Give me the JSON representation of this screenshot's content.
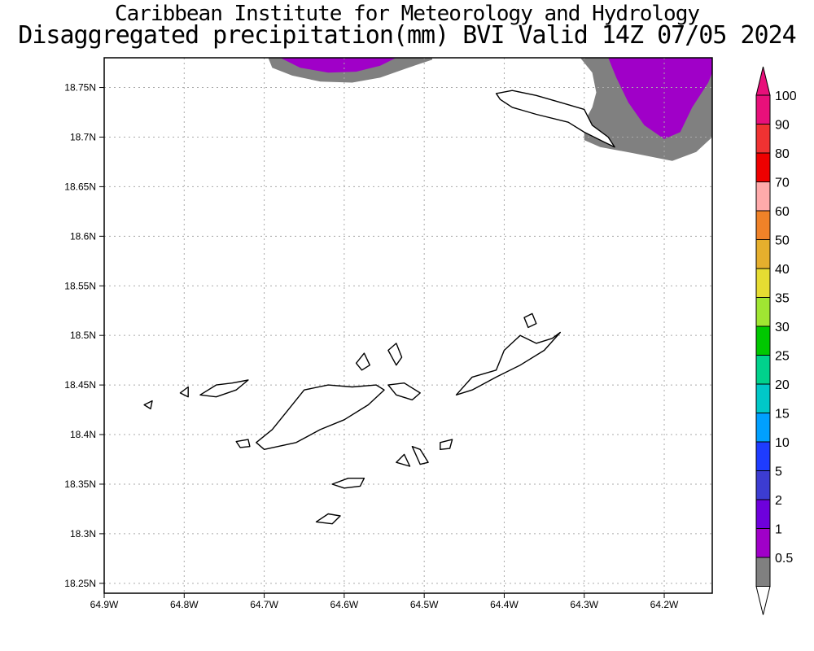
{
  "titles": {
    "line1": "Caribbean Institute for Meteorology and Hydrology",
    "line2": "Disaggregated precipitation(mm) BVI Valid 14Z 07/05 2024"
  },
  "map": {
    "lon_range": [
      -64.9,
      -64.14
    ],
    "lat_range": [
      18.24,
      18.78
    ],
    "lon_ticks": [
      {
        "v": -64.9,
        "label": "64.9W"
      },
      {
        "v": -64.8,
        "label": "64.8W"
      },
      {
        "v": -64.7,
        "label": "64.7W"
      },
      {
        "v": -64.6,
        "label": "64.6W"
      },
      {
        "v": -64.5,
        "label": "64.5W"
      },
      {
        "v": -64.4,
        "label": "64.4W"
      },
      {
        "v": -64.3,
        "label": "64.3W"
      },
      {
        "v": -64.2,
        "label": "64.2W"
      }
    ],
    "lat_ticks": [
      {
        "v": 18.25,
        "label": "18.25N"
      },
      {
        "v": 18.3,
        "label": "18.3N"
      },
      {
        "v": 18.35,
        "label": "18.35N"
      },
      {
        "v": 18.4,
        "label": "18.4N"
      },
      {
        "v": 18.45,
        "label": "18.45N"
      },
      {
        "v": 18.5,
        "label": "18.5N"
      },
      {
        "v": 18.55,
        "label": "18.55N"
      },
      {
        "v": 18.6,
        "label": "18.6N"
      },
      {
        "v": 18.65,
        "label": "18.65N"
      },
      {
        "v": 18.7,
        "label": "18.7N"
      },
      {
        "v": 18.75,
        "label": "18.75N"
      }
    ],
    "grid": true,
    "islands": [
      {
        "name": "Anegada",
        "poly": [
          [
            -64.41,
            18.744
          ],
          [
            -64.39,
            18.747
          ],
          [
            -64.36,
            18.742
          ],
          [
            -64.33,
            18.735
          ],
          [
            -64.3,
            18.728
          ],
          [
            -64.29,
            18.712
          ],
          [
            -64.27,
            18.7
          ],
          [
            -64.262,
            18.69
          ],
          [
            -64.275,
            18.695
          ],
          [
            -64.3,
            18.705
          ],
          [
            -64.32,
            18.715
          ],
          [
            -64.36,
            18.723
          ],
          [
            -64.39,
            18.73
          ],
          [
            -64.405,
            18.738
          ]
        ]
      },
      {
        "name": "Tortola",
        "poly": [
          [
            -64.7,
            18.385
          ],
          [
            -64.66,
            18.392
          ],
          [
            -64.63,
            18.405
          ],
          [
            -64.6,
            18.415
          ],
          [
            -64.57,
            18.43
          ],
          [
            -64.55,
            18.445
          ],
          [
            -64.56,
            18.45
          ],
          [
            -64.59,
            18.448
          ],
          [
            -64.62,
            18.45
          ],
          [
            -64.65,
            18.445
          ],
          [
            -64.67,
            18.425
          ],
          [
            -64.69,
            18.405
          ],
          [
            -64.71,
            18.392
          ]
        ]
      },
      {
        "name": "Virgin Gorda",
        "poly": [
          [
            -64.46,
            18.44
          ],
          [
            -64.44,
            18.458
          ],
          [
            -64.41,
            18.465
          ],
          [
            -64.4,
            18.485
          ],
          [
            -64.38,
            18.5
          ],
          [
            -64.36,
            18.492
          ],
          [
            -64.34,
            18.497
          ],
          [
            -64.33,
            18.503
          ],
          [
            -64.35,
            18.485
          ],
          [
            -64.38,
            18.47
          ],
          [
            -64.41,
            18.458
          ],
          [
            -64.44,
            18.445
          ]
        ]
      },
      {
        "name": "Jost Van Dyke",
        "poly": [
          [
            -64.78,
            18.44
          ],
          [
            -64.76,
            18.45
          ],
          [
            -64.74,
            18.452
          ],
          [
            -64.72,
            18.455
          ],
          [
            -64.735,
            18.445
          ],
          [
            -64.76,
            18.438
          ]
        ]
      },
      {
        "name": "Beef Island",
        "poly": [
          [
            -64.545,
            18.45
          ],
          [
            -64.525,
            18.452
          ],
          [
            -64.505,
            18.442
          ],
          [
            -64.515,
            18.435
          ],
          [
            -64.535,
            18.44
          ]
        ]
      },
      {
        "name": "Peter Island",
        "poly": [
          [
            -64.615,
            18.35
          ],
          [
            -64.595,
            18.356
          ],
          [
            -64.575,
            18.356
          ],
          [
            -64.58,
            18.348
          ],
          [
            -64.6,
            18.346
          ]
        ]
      },
      {
        "name": "Norman Island",
        "poly": [
          [
            -64.635,
            18.312
          ],
          [
            -64.62,
            18.32
          ],
          [
            -64.605,
            18.318
          ],
          [
            -64.615,
            18.31
          ]
        ]
      },
      {
        "name": "Great Camanoe",
        "poly": [
          [
            -64.545,
            18.485
          ],
          [
            -64.535,
            18.492
          ],
          [
            -64.528,
            18.478
          ],
          [
            -64.535,
            18.47
          ]
        ]
      },
      {
        "name": "Guana Island",
        "poly": [
          [
            -64.585,
            18.472
          ],
          [
            -64.575,
            18.482
          ],
          [
            -64.568,
            18.47
          ],
          [
            -64.578,
            18.465
          ]
        ]
      },
      {
        "name": "Salt Island",
        "poly": [
          [
            -64.535,
            18.372
          ],
          [
            -64.525,
            18.38
          ],
          [
            -64.518,
            18.368
          ]
        ]
      },
      {
        "name": "Cooper Island",
        "poly": [
          [
            -64.515,
            18.388
          ],
          [
            -64.505,
            18.385
          ],
          [
            -64.495,
            18.372
          ],
          [
            -64.505,
            18.37
          ]
        ]
      },
      {
        "name": "Ginger Island",
        "poly": [
          [
            -64.48,
            18.392
          ],
          [
            -64.465,
            18.395
          ],
          [
            -64.468,
            18.386
          ],
          [
            -64.48,
            18.385
          ]
        ]
      },
      {
        "name": "Little Thatch",
        "poly": [
          [
            -64.735,
            18.393
          ],
          [
            -64.72,
            18.395
          ],
          [
            -64.718,
            18.388
          ],
          [
            -64.73,
            18.387
          ]
        ]
      },
      {
        "name": "Mosquito Island",
        "poly": [
          [
            -64.375,
            18.518
          ],
          [
            -64.365,
            18.522
          ],
          [
            -64.36,
            18.512
          ],
          [
            -64.37,
            18.508
          ]
        ]
      },
      {
        "name": "Little Jost",
        "poly": [
          [
            -64.805,
            18.442
          ],
          [
            -64.795,
            18.448
          ],
          [
            -64.795,
            18.438
          ]
        ]
      },
      {
        "name": "Green Cay",
        "poly": [
          [
            -64.85,
            18.43
          ],
          [
            -64.84,
            18.434
          ],
          [
            -64.842,
            18.426
          ]
        ]
      }
    ],
    "precip_areas": [
      {
        "level": "0.5-1",
        "color": "#808080",
        "poly": [
          [
            -64.695,
            18.78
          ],
          [
            -64.69,
            18.77
          ],
          [
            -64.665,
            18.762
          ],
          [
            -64.63,
            18.756
          ],
          [
            -64.59,
            18.755
          ],
          [
            -64.555,
            18.76
          ],
          [
            -64.52,
            18.77
          ],
          [
            -64.49,
            18.778
          ],
          [
            -64.49,
            18.78
          ]
        ]
      },
      {
        "level": "1-2",
        "color": "#a000c8",
        "poly": [
          [
            -64.68,
            18.78
          ],
          [
            -64.655,
            18.77
          ],
          [
            -64.62,
            18.765
          ],
          [
            -64.585,
            18.766
          ],
          [
            -64.555,
            18.772
          ],
          [
            -64.535,
            18.78
          ]
        ]
      },
      {
        "level": "0.5-1",
        "color": "#808080",
        "poly": [
          [
            -64.305,
            18.78
          ],
          [
            -64.29,
            18.765
          ],
          [
            -64.285,
            18.745
          ],
          [
            -64.29,
            18.73
          ],
          [
            -64.3,
            18.715
          ],
          [
            -64.3,
            18.697
          ],
          [
            -64.28,
            18.69
          ],
          [
            -64.24,
            18.684
          ],
          [
            -64.19,
            18.676
          ],
          [
            -64.16,
            18.685
          ],
          [
            -64.14,
            18.7
          ],
          [
            -64.14,
            18.78
          ]
        ]
      },
      {
        "level": "1-2",
        "color": "#a000c8",
        "poly": [
          [
            -64.27,
            18.78
          ],
          [
            -64.26,
            18.76
          ],
          [
            -64.245,
            18.735
          ],
          [
            -64.225,
            18.712
          ],
          [
            -64.2,
            18.698
          ],
          [
            -64.18,
            18.705
          ],
          [
            -64.165,
            18.73
          ],
          [
            -64.145,
            18.755
          ],
          [
            -64.14,
            18.765
          ],
          [
            -64.14,
            18.78
          ]
        ]
      }
    ]
  },
  "colorbar": {
    "levels": [
      {
        "label": "100",
        "color": "#e8107a"
      },
      {
        "label": "90",
        "color": "#f03232"
      },
      {
        "label": "80",
        "color": "#ee0000"
      },
      {
        "label": "70",
        "color": "#ffaaaa"
      },
      {
        "label": "60",
        "color": "#f08228"
      },
      {
        "label": "50",
        "color": "#e6af2d"
      },
      {
        "label": "40",
        "color": "#e6dc32"
      },
      {
        "label": "35",
        "color": "#a0e632"
      },
      {
        "label": "30",
        "color": "#00c800"
      },
      {
        "label": "25",
        "color": "#00d28c"
      },
      {
        "label": "20",
        "color": "#00c8c8"
      },
      {
        "label": "15",
        "color": "#00a0ff"
      },
      {
        "label": "10",
        "color": "#1e3cff"
      },
      {
        "label": "5",
        "color": "#3c3cd2"
      },
      {
        "label": "2",
        "color": "#6e00dc"
      },
      {
        "label": "1",
        "color": "#a000c8"
      },
      {
        "label": "0.5",
        "color": "#808080"
      }
    ],
    "top_arrow_color": "#e8107a",
    "bottom_arrow_color": "#ffffff"
  }
}
